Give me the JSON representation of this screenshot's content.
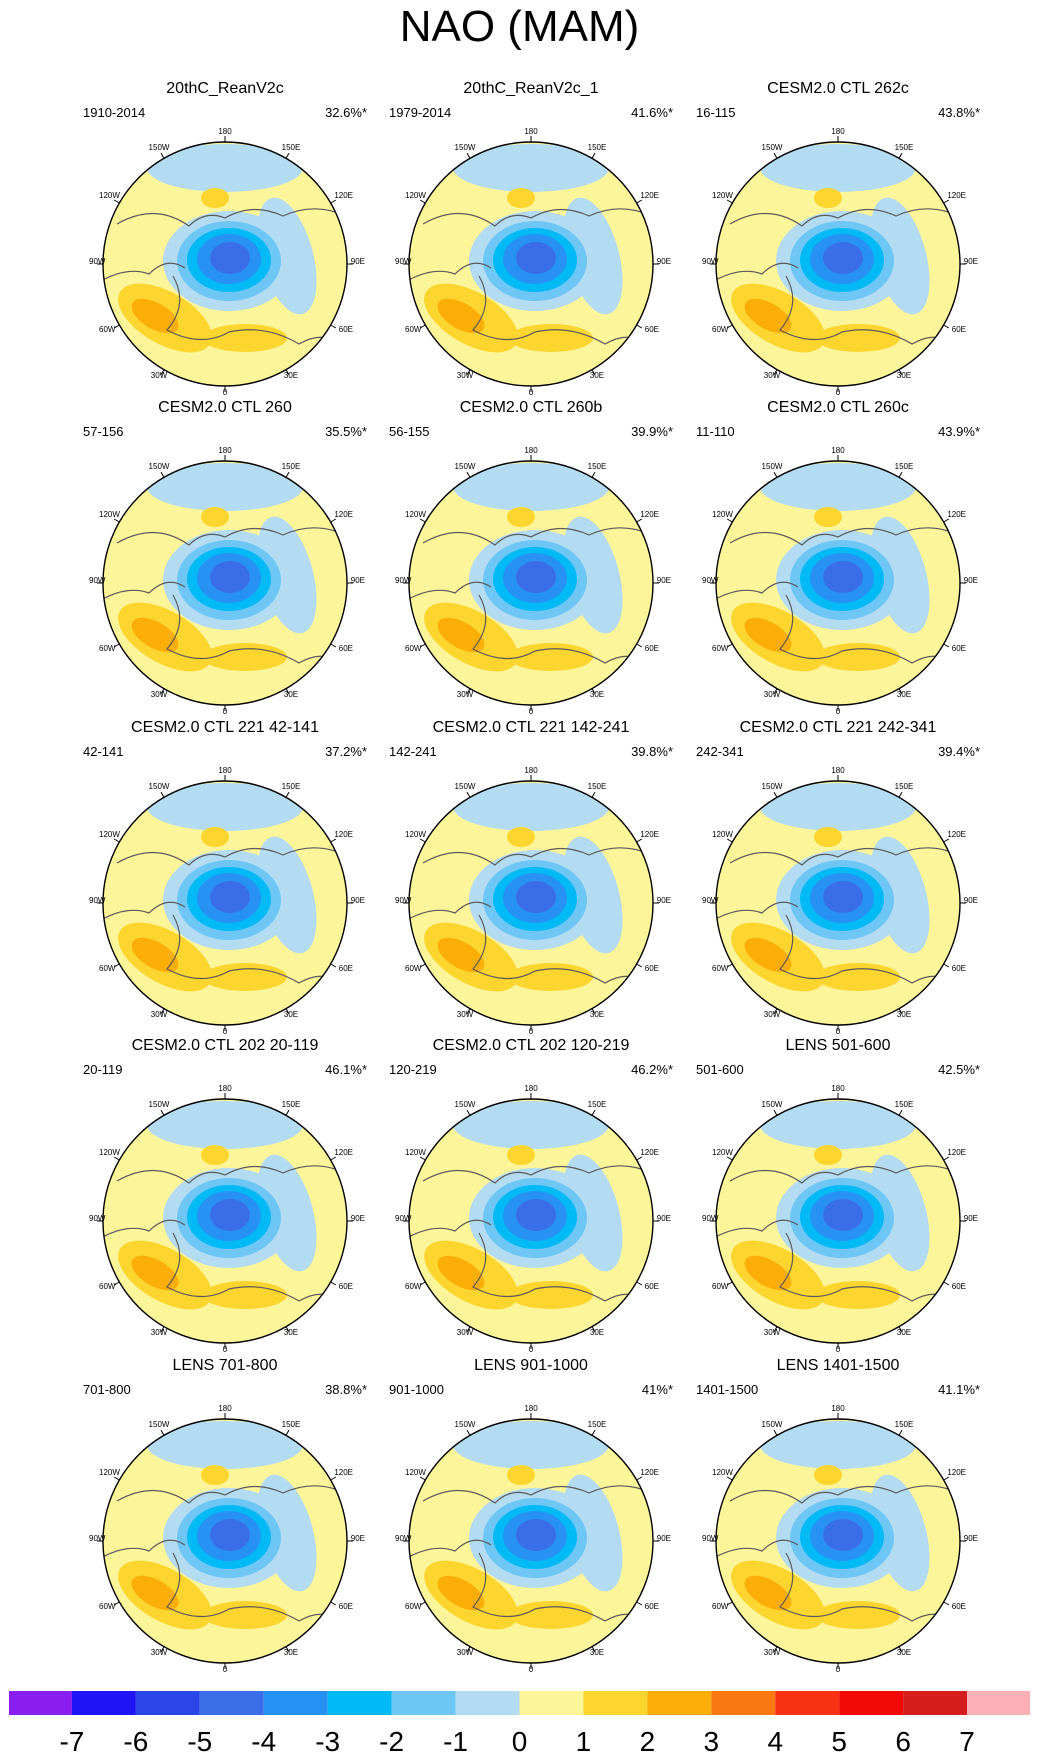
{
  "title": "NAO (MAM)",
  "map_labels": {
    "n180": "180",
    "w150": "150W",
    "e150": "150E",
    "w120": "120W",
    "e120": "120E",
    "w90": "90W",
    "e90": "90E",
    "w60": "60W",
    "e60": "60E",
    "w30": "30W",
    "e30": "30E",
    "n0": "0"
  },
  "panels": [
    {
      "title": "20thC_ReanV2c",
      "period": "1910-2014",
      "pct": "32.6%*"
    },
    {
      "title": "20thC_ReanV2c_1",
      "period": "1979-2014",
      "pct": "41.6%*"
    },
    {
      "title": "CESM2.0 CTL 262c",
      "period": "16-115",
      "pct": "43.8%*"
    },
    {
      "title": "CESM2.0 CTL 260",
      "period": "57-156",
      "pct": "35.5%*"
    },
    {
      "title": "CESM2.0 CTL 260b",
      "period": "56-155",
      "pct": "39.9%*"
    },
    {
      "title": "CESM2.0 CTL 260c",
      "period": "11-110",
      "pct": "43.9%*"
    },
    {
      "title": "CESM2.0 CTL 221 42-141",
      "period": "42-141",
      "pct": "37.2%*"
    },
    {
      "title": "CESM2.0 CTL 221 142-241",
      "period": "142-241",
      "pct": "39.8%*"
    },
    {
      "title": "CESM2.0 CTL 221 242-341",
      "period": "242-341",
      "pct": "39.4%*"
    },
    {
      "title": "CESM2.0 CTL 202 20-119",
      "period": "20-119",
      "pct": "46.1%*"
    },
    {
      "title": "CESM2.0 CTL 202 120-219",
      "period": "120-219",
      "pct": "46.2%*"
    },
    {
      "title": "LENS 501-600",
      "period": "501-600",
      "pct": "42.5%*"
    },
    {
      "title": "LENS 701-800",
      "period": "701-800",
      "pct": "38.8%*"
    },
    {
      "title": "LENS 901-1000",
      "period": "901-1000",
      "pct": "41%*"
    },
    {
      "title": "LENS 1401-1500",
      "period": "1401-1500",
      "pct": "41.1%*"
    }
  ],
  "colorbar": {
    "labels": [
      "-7",
      "-6",
      "-5",
      "-4",
      "-3",
      "-2",
      "-1",
      "0",
      "1",
      "2",
      "3",
      "4",
      "5",
      "6",
      "7"
    ],
    "colors": [
      "#8a1ef0",
      "#1e14f5",
      "#2a45e8",
      "#3a6ee8",
      "#2892f4",
      "#00baf6",
      "#6ec6f5",
      "#b3dcf3",
      "#fdf59a",
      "#fcd52e",
      "#fbad08",
      "#fa7812",
      "#fa3214",
      "#f20a05",
      "#d61e1e",
      "#fab0b4"
    ]
  }
}
